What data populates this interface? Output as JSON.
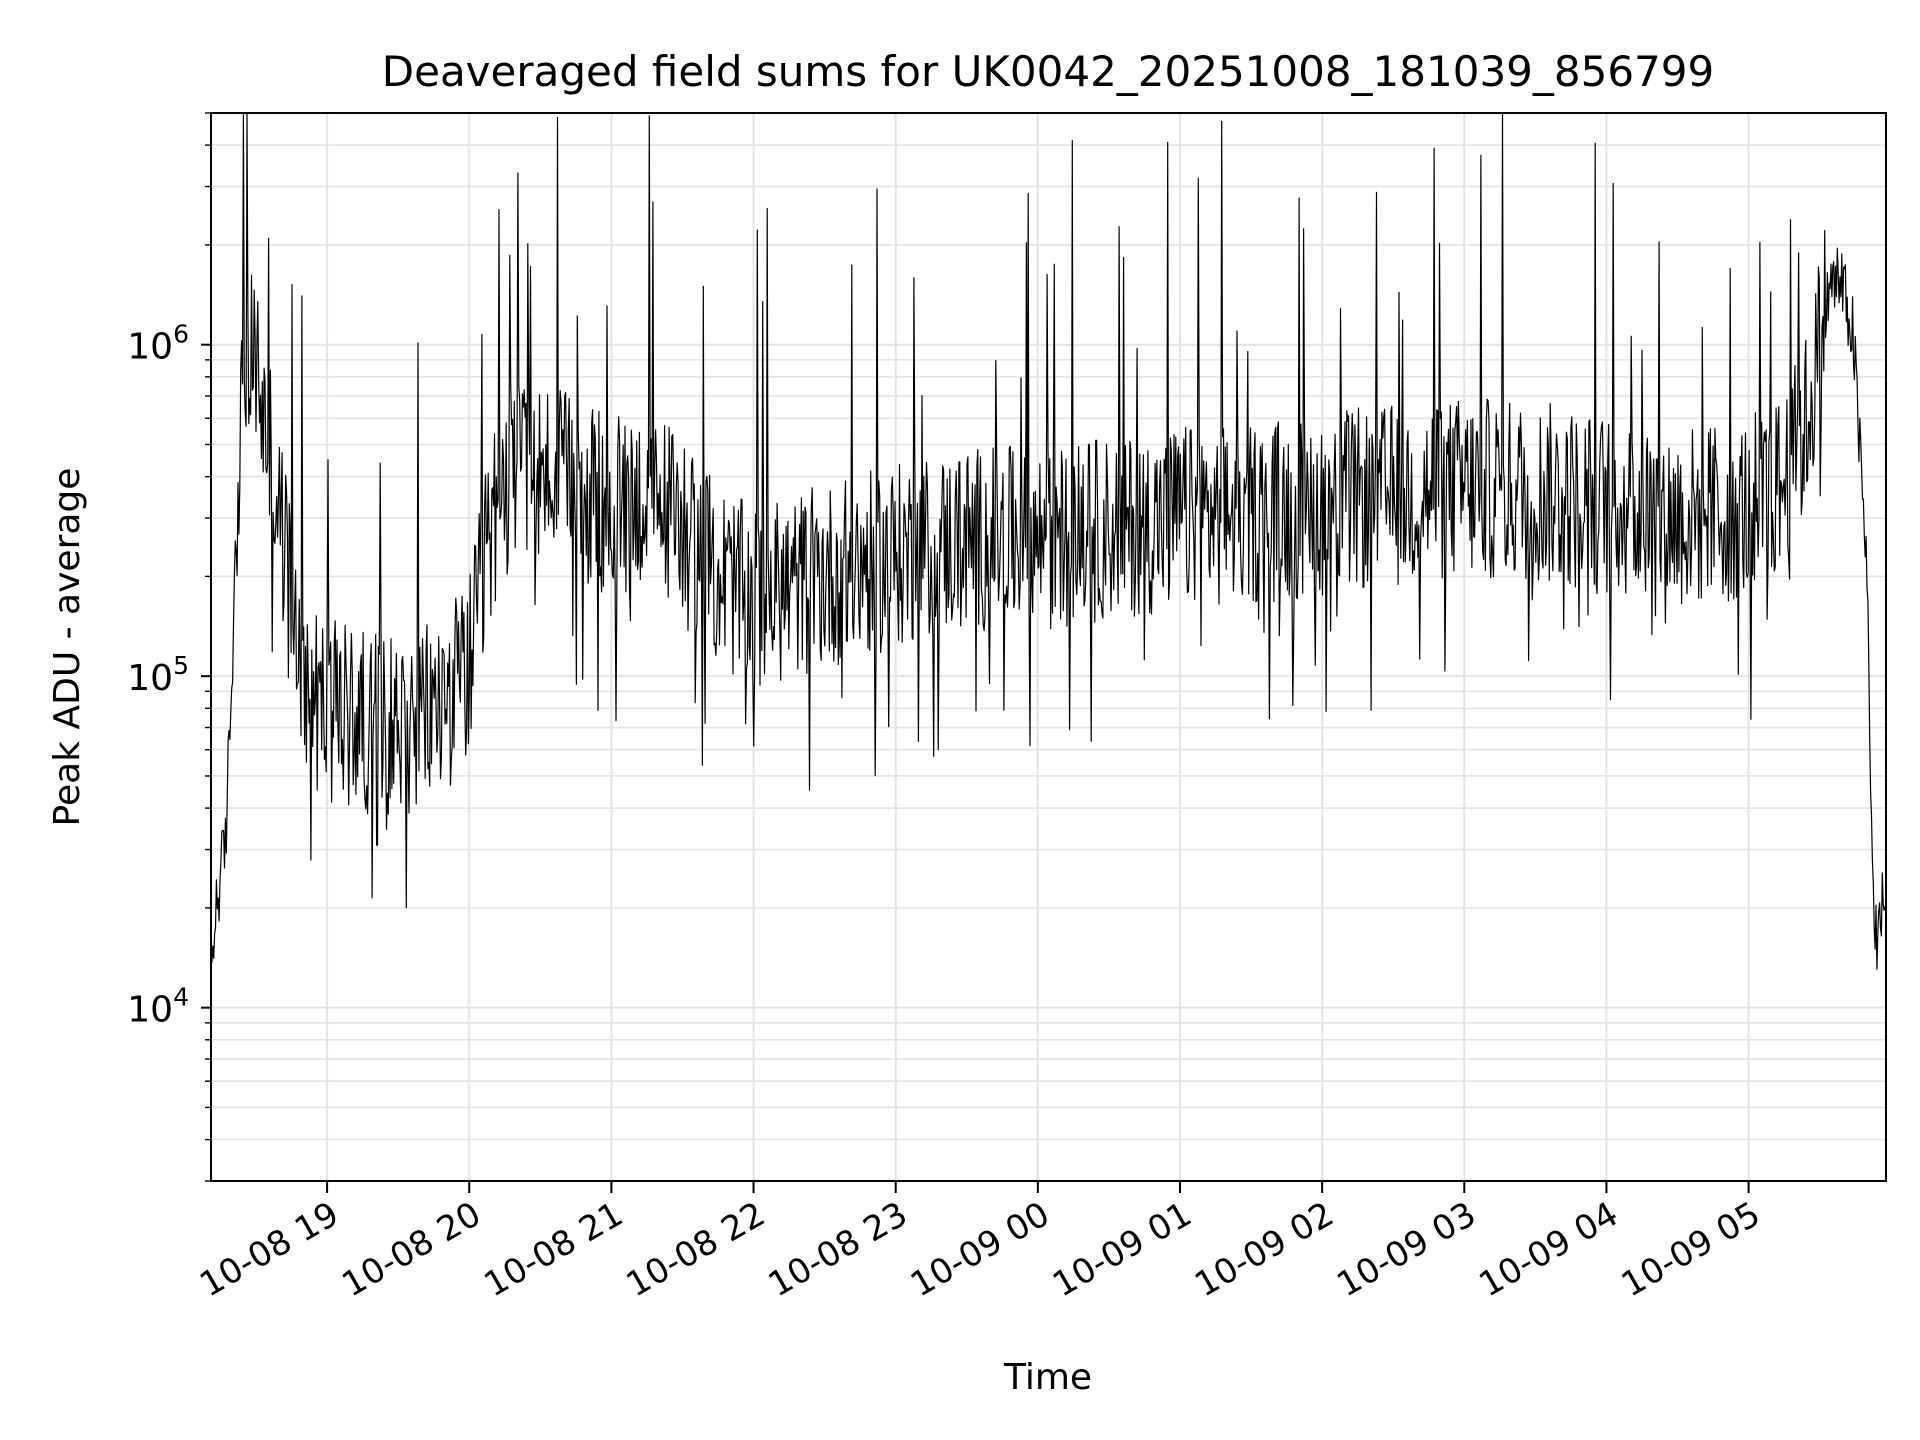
{
  "chart_data": {
    "type": "line",
    "title": "Deaveraged field sums for UK0042_20251008_181039_856799",
    "xlabel": "Time",
    "ylabel": "Peak ADU - average",
    "yscale": "log",
    "ylim": [
      3000,
      5000000
    ],
    "xlim": [
      "2025-10-08 18:11",
      "2025-10-09 05:58"
    ],
    "grid": true,
    "line_color": "#000000",
    "x_ticks": [
      "10-08 19",
      "10-08 20",
      "10-08 21",
      "10-08 22",
      "10-08 23",
      "10-09 00",
      "10-09 01",
      "10-09 02",
      "10-09 03",
      "10-09 04",
      "10-09 05"
    ],
    "y_ticks": [
      {
        "value": 10000,
        "base": "10",
        "exp": "4"
      },
      {
        "value": 100000,
        "base": "10",
        "exp": "5"
      },
      {
        "value": 1000000,
        "base": "10",
        "exp": "6"
      }
    ],
    "series": [
      {
        "x": [
          "2025-10-08 18:11",
          "2025-10-08 18:13",
          "2025-10-08 18:15",
          "2025-10-08 18:17",
          "2025-10-08 18:20",
          "2025-10-08 18:22",
          "2025-10-08 18:25",
          "2025-10-08 18:27",
          "2025-10-08 18:30",
          "2025-10-08 18:33",
          "2025-10-08 18:36",
          "2025-10-08 18:40",
          "2025-10-08 18:45",
          "2025-10-08 18:50",
          "2025-10-08 18:55",
          "2025-10-08 19:00",
          "2025-10-08 19:10",
          "2025-10-08 19:20",
          "2025-10-08 19:30",
          "2025-10-08 19:40",
          "2025-10-08 19:50",
          "2025-10-08 20:00",
          "2025-10-08 20:10",
          "2025-10-08 20:20",
          "2025-10-08 20:30",
          "2025-10-08 20:40",
          "2025-10-08 20:50",
          "2025-10-08 21:00",
          "2025-10-08 21:15",
          "2025-10-08 21:30",
          "2025-10-08 21:40",
          "2025-10-08 21:50",
          "2025-10-08 22:00",
          "2025-10-08 22:30",
          "2025-10-08 23:00",
          "2025-10-08 23:30",
          "2025-10-09 00:00",
          "2025-10-09 00:30",
          "2025-10-09 01:00",
          "2025-10-09 01:30",
          "2025-10-09 02:00",
          "2025-10-09 02:30",
          "2025-10-09 03:00",
          "2025-10-09 03:30",
          "2025-10-09 04:00",
          "2025-10-09 04:30",
          "2025-10-09 05:00",
          "2025-10-09 05:15",
          "2025-10-09 05:25",
          "2025-10-09 05:33",
          "2025-10-09 05:38",
          "2025-10-09 05:44",
          "2025-10-09 05:50",
          "2025-10-09 05:53",
          "2025-10-09 05:55",
          "2025-10-09 05:58"
        ],
        "values": [
          12000,
          20000,
          25000,
          30000,
          110000,
          380000,
          800000,
          850000,
          900000,
          600000,
          450000,
          300000,
          180000,
          110000,
          85000,
          80000,
          75000,
          72000,
          72000,
          75000,
          85000,
          105000,
          300000,
          450000,
          420000,
          380000,
          340000,
          320000,
          350000,
          300000,
          220000,
          190000,
          170000,
          200000,
          230000,
          260000,
          260000,
          280000,
          300000,
          310000,
          330000,
          350000,
          370000,
          360000,
          330000,
          300000,
          320000,
          380000,
          600000,
          1400000,
          1600000,
          1100000,
          200000,
          15000,
          18000,
          22000
        ]
      }
    ]
  }
}
